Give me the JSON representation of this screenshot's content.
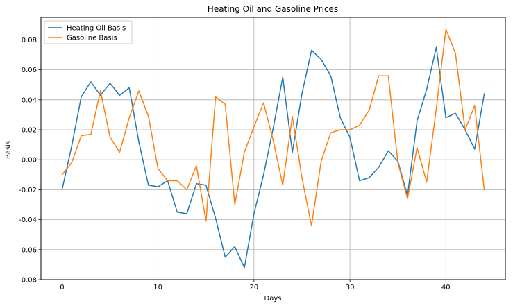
{
  "chart_data": {
    "type": "line",
    "title": "Heating Oil and Gasoline Prices",
    "xlabel": "Days",
    "ylabel": "Basis",
    "xlim": [
      -2.2,
      46.2
    ],
    "ylim": [
      -0.08,
      0.095
    ],
    "xticks": [
      0,
      10,
      20,
      30,
      40
    ],
    "yticks": [
      -0.08,
      -0.06,
      -0.04,
      -0.02,
      0.0,
      0.02,
      0.04,
      0.06,
      0.08
    ],
    "ytick_labels": [
      "-0.08",
      "-0.06",
      "-0.04",
      "-0.02",
      "0.00",
      "0.02",
      "0.04",
      "0.06",
      "0.08"
    ],
    "grid": true,
    "legend": "top-left",
    "x": [
      0,
      1,
      2,
      3,
      4,
      5,
      6,
      7,
      8,
      9,
      10,
      11,
      12,
      13,
      14,
      15,
      16,
      17,
      18,
      19,
      20,
      21,
      22,
      23,
      24,
      25,
      26,
      27,
      28,
      29,
      30,
      31,
      32,
      33,
      34,
      35,
      36,
      37,
      38,
      39,
      40,
      41,
      42,
      43,
      44
    ],
    "series": [
      {
        "name": "Heating Oil Basis",
        "color": "#1f77b4",
        "values": [
          -0.02,
          0.009,
          0.042,
          0.052,
          0.043,
          0.051,
          0.043,
          0.048,
          0.012,
          -0.017,
          -0.018,
          -0.014,
          -0.035,
          -0.036,
          -0.016,
          -0.017,
          -0.039,
          -0.065,
          -0.058,
          -0.072,
          -0.036,
          -0.01,
          0.021,
          0.055,
          0.005,
          0.044,
          0.073,
          0.067,
          0.056,
          0.028,
          0.015,
          -0.014,
          -0.012,
          -0.005,
          0.006,
          -0.001,
          -0.024,
          0.026,
          0.047,
          0.075,
          0.028,
          0.031,
          0.02,
          0.007,
          0.044
        ]
      },
      {
        "name": "Gasoline Basis",
        "color": "#ff7f0e",
        "values": [
          -0.01,
          -0.002,
          0.016,
          0.017,
          0.046,
          0.015,
          0.005,
          0.028,
          0.046,
          0.029,
          -0.006,
          -0.014,
          -0.014,
          -0.02,
          -0.004,
          -0.041,
          0.042,
          0.037,
          -0.03,
          0.005,
          0.022,
          0.038,
          0.013,
          -0.017,
          0.029,
          -0.012,
          -0.044,
          -0.001,
          0.018,
          0.02,
          0.02,
          0.023,
          0.033,
          0.056,
          0.056,
          -0.002,
          -0.026,
          0.008,
          -0.015,
          0.034,
          0.087,
          0.071,
          0.02,
          0.036,
          -0.02
        ]
      }
    ]
  }
}
